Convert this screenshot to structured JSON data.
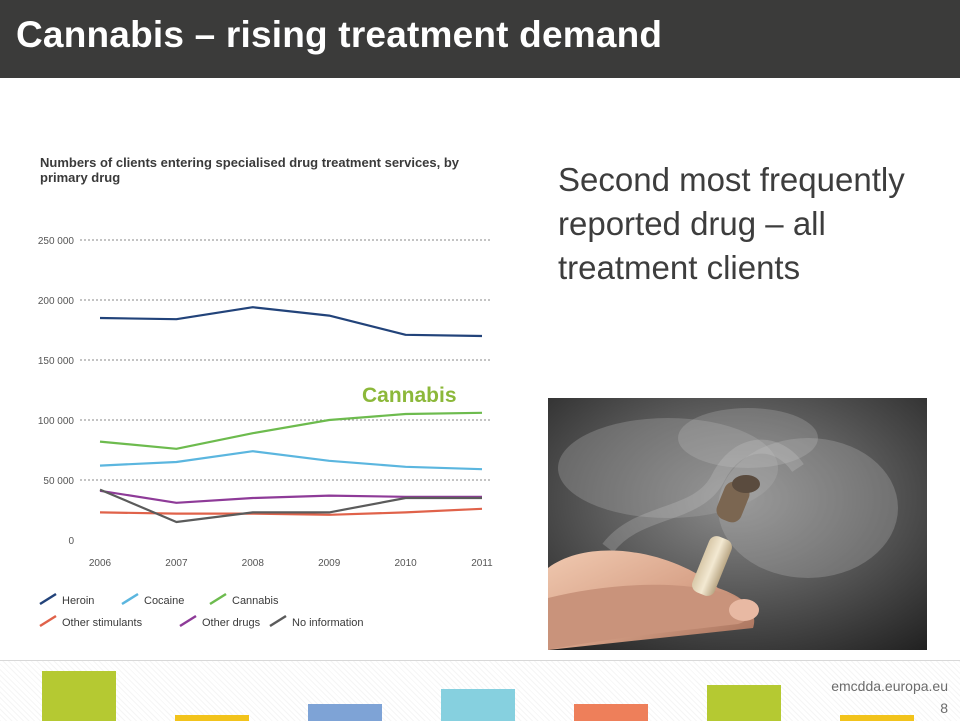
{
  "slide": {
    "title": "Cannabis – rising treatment demand",
    "body_text": "Second most frequently reported drug – all treatment clients",
    "callout_label": "Cannabis",
    "footer_site": "emcdda.europa.eu",
    "page_number": "8"
  },
  "colors": {
    "header_bg": "#3b3b3a",
    "accent_green": "#8cb83a",
    "footer_bars": [
      "#b5c932",
      "#f2c31b",
      "#7ea3d6",
      "#86d0df",
      "#ee7f5a",
      "#b5c932",
      "#f2c31b"
    ]
  },
  "chart_data": {
    "type": "line",
    "title": "Numbers of clients entering specialised drug treatment services, by primary drug",
    "x": [
      "2006",
      "2007",
      "2008",
      "2009",
      "2010",
      "2011"
    ],
    "y_ticks": [
      "0",
      "50 000",
      "100 000",
      "150 000",
      "200 000",
      "250 000"
    ],
    "ylim": [
      0,
      250000
    ],
    "grid": "horizontal dotted",
    "legend_position": "bottom",
    "series": [
      {
        "name": "Heroin",
        "color": "#22437a",
        "values": [
          185000,
          184000,
          194000,
          187000,
          171000,
          170000
        ]
      },
      {
        "name": "Cocaine",
        "color": "#5bb6df",
        "values": [
          62000,
          65000,
          74000,
          66000,
          61000,
          59000
        ]
      },
      {
        "name": "Cannabis",
        "color": "#6dbb4e",
        "values": [
          82000,
          76000,
          89000,
          100000,
          105000,
          106000
        ]
      },
      {
        "name": "Other stimulants",
        "color": "#e0624a",
        "values": [
          23000,
          22000,
          22000,
          21000,
          23000,
          26000
        ]
      },
      {
        "name": "Other drugs",
        "color": "#8e3b98",
        "values": [
          41000,
          31000,
          35000,
          37000,
          36000,
          36000
        ]
      },
      {
        "name": "No information",
        "color": "#5b5b5b",
        "values": [
          42000,
          15000,
          23000,
          23000,
          35000,
          35000
        ]
      }
    ]
  }
}
